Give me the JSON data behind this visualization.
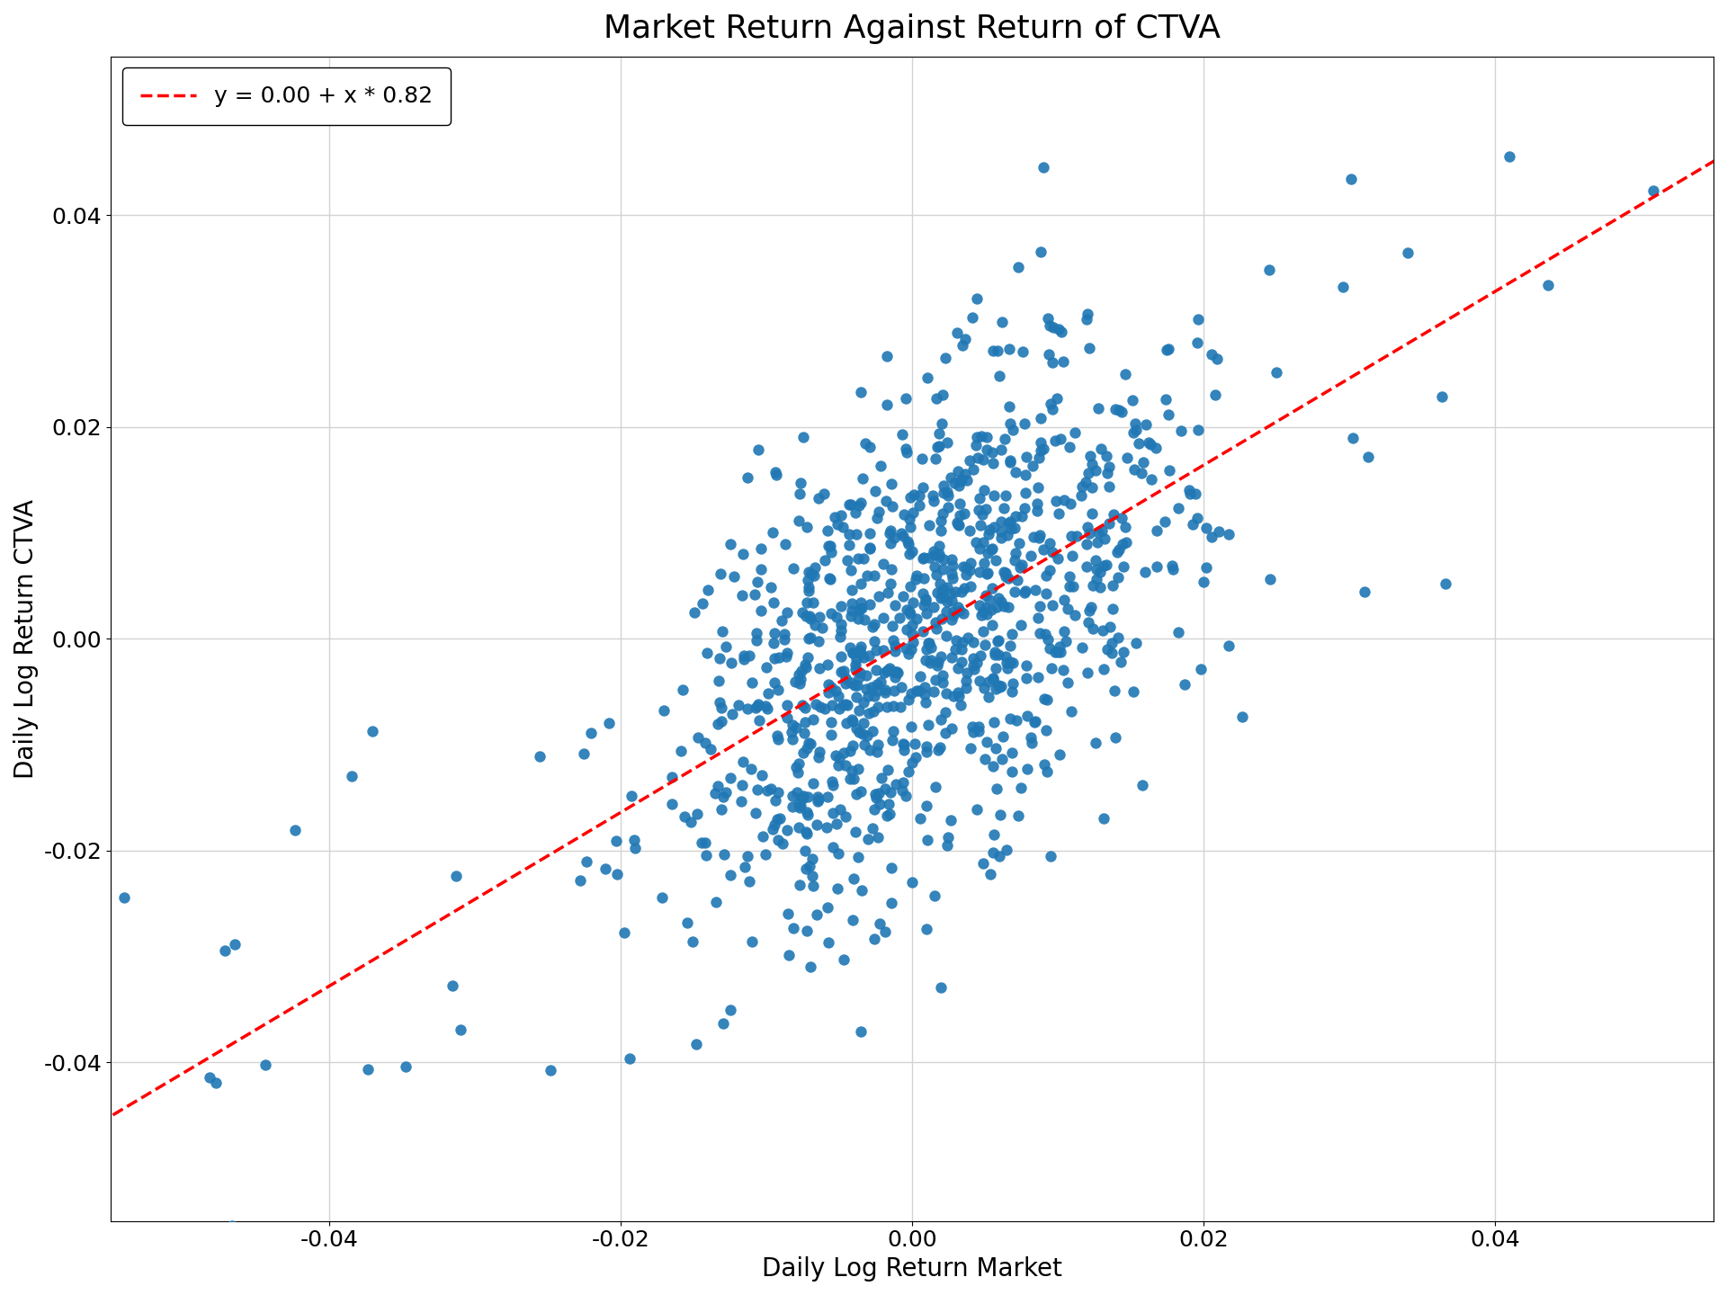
{
  "title": "Market Return Against Return of CTVA",
  "xlabel": "Daily Log Return Market",
  "ylabel": "Daily Log Return CTVA",
  "intercept": 0.0,
  "slope": 0.82,
  "legend_label": "y = 0.00 + x * 0.82",
  "xlim": [
    -0.055,
    0.055
  ],
  "ylim": [
    -0.055,
    0.055
  ],
  "xticks": [
    -0.04,
    -0.02,
    0.0,
    0.02,
    0.04
  ],
  "yticks": [
    -0.04,
    -0.02,
    0.0,
    0.02,
    0.04
  ],
  "scatter_color": "#1f77b4",
  "line_color": "red",
  "dot_size": 80,
  "title_fontsize": 26,
  "label_fontsize": 20,
  "tick_fontsize": 18,
  "legend_fontsize": 18,
  "seed": 12345,
  "n_points": 1000
}
